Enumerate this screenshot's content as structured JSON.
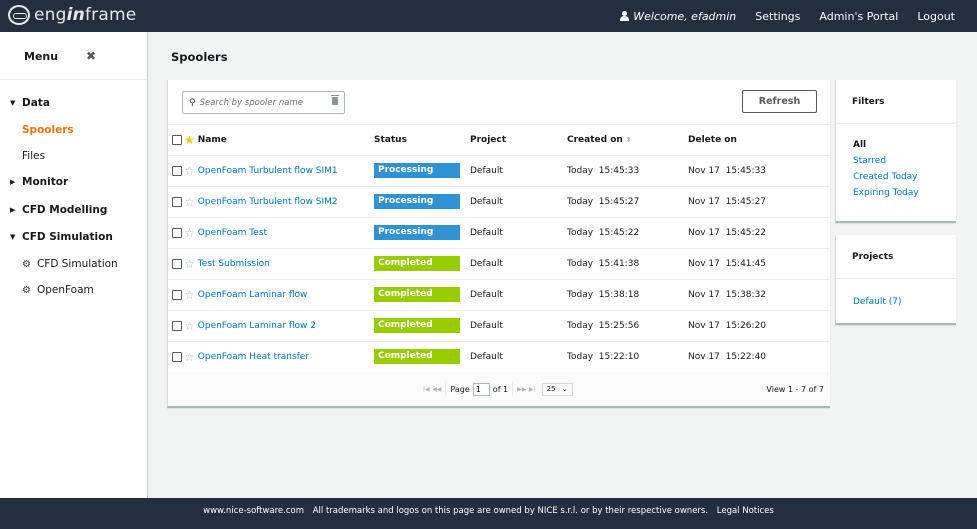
{
  "header": {
    "logo": {
      "pre": "eng",
      "mid": "in",
      "post": "frame"
    },
    "welcome": "Welcome, efadmin",
    "nav": [
      "Settings",
      "Admin's Portal",
      "Logout"
    ]
  },
  "sidebar": {
    "title": "Menu",
    "close_icon": "✖",
    "groups": [
      {
        "label": "Data",
        "expanded": true,
        "caret": "▼",
        "items": [
          {
            "label": "Spoolers",
            "active": true
          },
          {
            "label": "Files",
            "active": false
          }
        ]
      },
      {
        "label": "Monitor",
        "expanded": false,
        "caret": "▶"
      },
      {
        "label": "CFD Modelling",
        "expanded": false,
        "caret": "▶"
      },
      {
        "label": "CFD Simulation",
        "expanded": true,
        "caret": "▼",
        "items": [
          {
            "label": "CFD Simulation",
            "icon": "gears-icon"
          },
          {
            "label": "OpenFoam",
            "icon": "gears-icon"
          }
        ]
      }
    ]
  },
  "page": {
    "title": "Spoolers"
  },
  "toolbar": {
    "search_placeholder": "Search by spooler name",
    "refresh_label": "Refresh"
  },
  "table": {
    "columns": [
      "Name",
      "Status",
      "Project",
      "Created on",
      "Delete on"
    ],
    "rows": [
      {
        "name": "OpenFoam Turbulent flow SIM1",
        "status": "Processing",
        "project": "Default",
        "created": "Today  15:45:33",
        "delete": "Nov 17  15:45:33"
      },
      {
        "name": "OpenFoam Turbulent flow SIM2",
        "status": "Processing",
        "project": "Default",
        "created": "Today  15:45:27",
        "delete": "Nov 17  15:45:27"
      },
      {
        "name": "OpenFoam Test",
        "status": "Processing",
        "project": "Default",
        "created": "Today  15:45:22",
        "delete": "Nov 17  15:45:22"
      },
      {
        "name": "Test Submission",
        "status": "Completed",
        "project": "Default",
        "created": "Today  15:41:38",
        "delete": "Nov 17  15:41:45"
      },
      {
        "name": "OpenFoam Laminar flow",
        "status": "Completed",
        "project": "Default",
        "created": "Today  15:38:18",
        "delete": "Nov 17  15:38:32"
      },
      {
        "name": "OpenFoam Laminar flow 2",
        "status": "Completed",
        "project": "Default",
        "created": "Today  15:25:56",
        "delete": "Nov 17  15:26:20"
      },
      {
        "name": "OpenFoam Heat transfer",
        "status": "Completed",
        "project": "Default",
        "created": "Today  15:22:10",
        "delete": "Nov 17  15:22:40"
      }
    ]
  },
  "status_colors": {
    "Processing": "#3192d3",
    "Completed": "#99cc00"
  },
  "pager": {
    "page_label": "Page",
    "page": "1",
    "of_label": "of 1",
    "page_size": "25",
    "view_info": "View 1 - 7 of 7"
  },
  "filters": {
    "title": "Filters",
    "items": [
      "All",
      "Starred",
      "Created Today",
      "Expiring Today"
    ]
  },
  "projects": {
    "title": "Projects",
    "items": [
      "Default (7)"
    ]
  },
  "footer": {
    "site": "www.nice-software.com",
    "notice": "All trademarks and logos on this page are owned by NICE s.r.l. or by their respective owners.",
    "legal": "Legal Notices"
  }
}
